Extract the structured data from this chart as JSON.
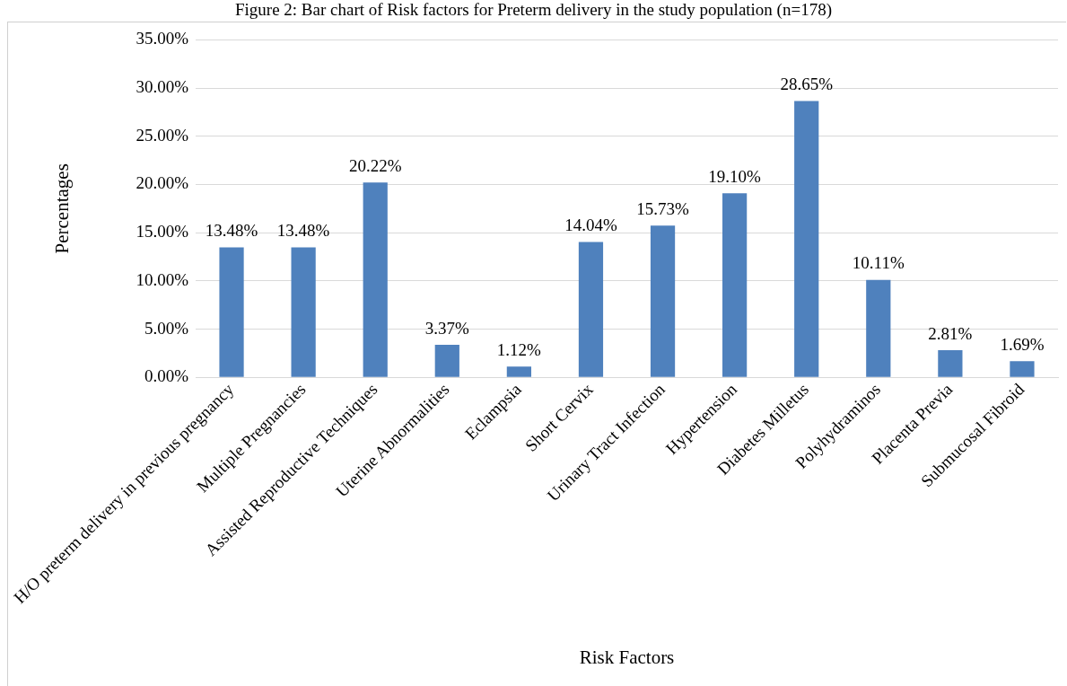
{
  "chart_data": {
    "type": "bar",
    "title": "Figure 2: Bar chart of Risk factors for Preterm delivery in the study population (n=178)",
    "xlabel": "Risk Factors",
    "ylabel": "Percentages",
    "categories": [
      "H/O preterm delivery in previous pregnancy",
      "Multiple Pregnancies",
      "Assisted Reproductive Techniques",
      "Uterine Abnormalities",
      "Eclampsia",
      "Short Cervix",
      "Urinary Tract Infection",
      "Hypertension",
      "Diabetes Milletus",
      "Polyhydraminos",
      "Placenta Previa",
      "Submucosal Fibroid"
    ],
    "values": [
      13.48,
      13.48,
      20.22,
      3.37,
      1.12,
      14.04,
      15.73,
      19.1,
      28.65,
      10.11,
      2.81,
      1.69
    ],
    "value_labels": [
      "13.48%",
      "13.48%",
      "20.22%",
      "3.37%",
      "1.12%",
      "14.04%",
      "15.73%",
      "19.10%",
      "28.65%",
      "10.11%",
      "2.81%",
      "1.69%"
    ],
    "color": "#4f81bd",
    "ylim": [
      0,
      35
    ],
    "yticks": [
      {
        "value": 0,
        "label": "0.00%"
      },
      {
        "value": 5,
        "label": "5.00%"
      },
      {
        "value": 10,
        "label": "10.00%"
      },
      {
        "value": 15,
        "label": "15.00%"
      },
      {
        "value": 20,
        "label": "20.00%"
      },
      {
        "value": 25,
        "label": "25.00%"
      },
      {
        "value": 30,
        "label": "30.00%"
      },
      {
        "value": 35,
        "label": "35.00%"
      }
    ],
    "grid": "y",
    "legend": false
  }
}
